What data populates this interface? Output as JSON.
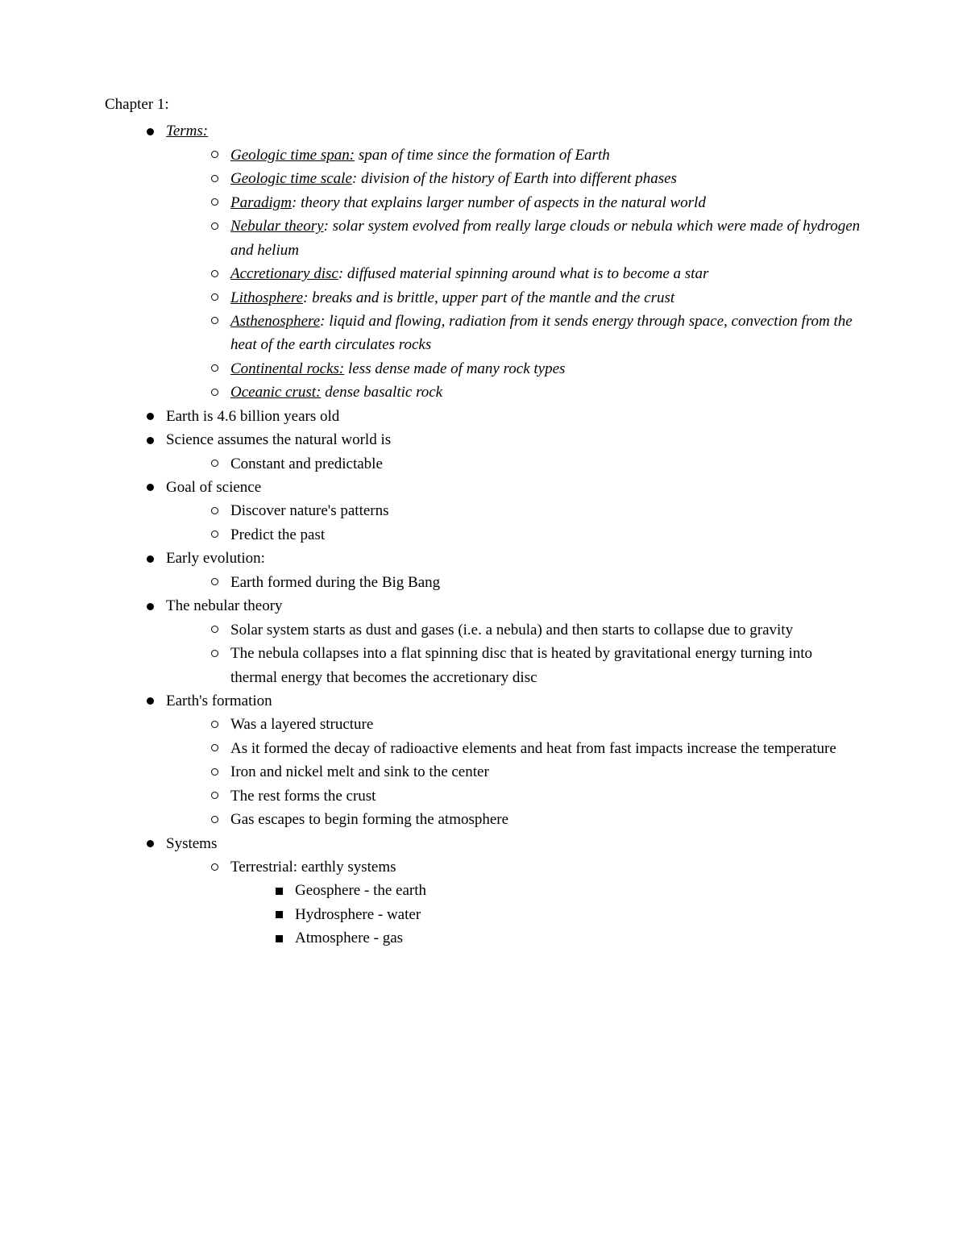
{
  "chapter_title": "Chapter 1:",
  "terms_heading": "Terms:",
  "terms": [
    {
      "name": "Geologic time span:",
      "def": " span of time since the formation of Earth"
    },
    {
      "name": "Geologic time scale",
      "def": ": division of the history of Earth into different phases"
    },
    {
      "name": "Paradigm",
      "def": ": theory that explains larger number of aspects in the natural world"
    },
    {
      "name": "Nebular theory",
      "def": ": solar system evolved from really large clouds or nebula which were made of hydrogen and helium"
    },
    {
      "name": "Accretionary disc",
      "def": ": diffused material spinning around what is to become a star"
    },
    {
      "name": "Lithosphere",
      "def": ": breaks and is brittle, upper part of the mantle and the crust"
    },
    {
      "name": "Asthenosphere",
      "def": ": liquid and flowing, radiation from it sends energy through space, convection from the heat of the earth circulates rocks"
    },
    {
      "name": "Continental rocks:",
      "def": " less dense made of many rock types"
    },
    {
      "name": "Oceanic crust:",
      "def": " dense basaltic rock"
    }
  ],
  "earth_age": "Earth is 4.6 billion years old",
  "science_assumes": "Science assumes the natural world is",
  "science_assumes_sub": [
    "Constant and predictable"
  ],
  "goal_heading": "Goal of science",
  "goal_sub": [
    "Discover nature's patterns",
    "Predict the past"
  ],
  "early_evo_heading": "Early evolution:",
  "early_evo_sub": [
    "Earth formed during the Big Bang"
  ],
  "nebular_heading": "The nebular theory",
  "nebular_sub": [
    "Solar system starts as dust and gases (i.e. a nebula) and then starts to collapse due to gravity",
    "The nebula collapses into a flat spinning disc that is heated by gravitational energy turning into thermal energy that becomes the accretionary disc"
  ],
  "formation_heading": "Earth's formation",
  "formation_sub": [
    "Was a layered structure",
    "As it formed the decay of radioactive elements and heat from fast impacts increase the temperature",
    "Iron and nickel melt and sink to the center",
    "The rest forms the crust",
    "Gas escapes to begin forming the atmosphere"
  ],
  "systems_heading": "Systems",
  "systems_sub_heading": "Terrestrial: earthly systems",
  "systems_sub": [
    "Geosphere - the earth",
    "Hydrosphere - water",
    "Atmosphere - gas"
  ]
}
